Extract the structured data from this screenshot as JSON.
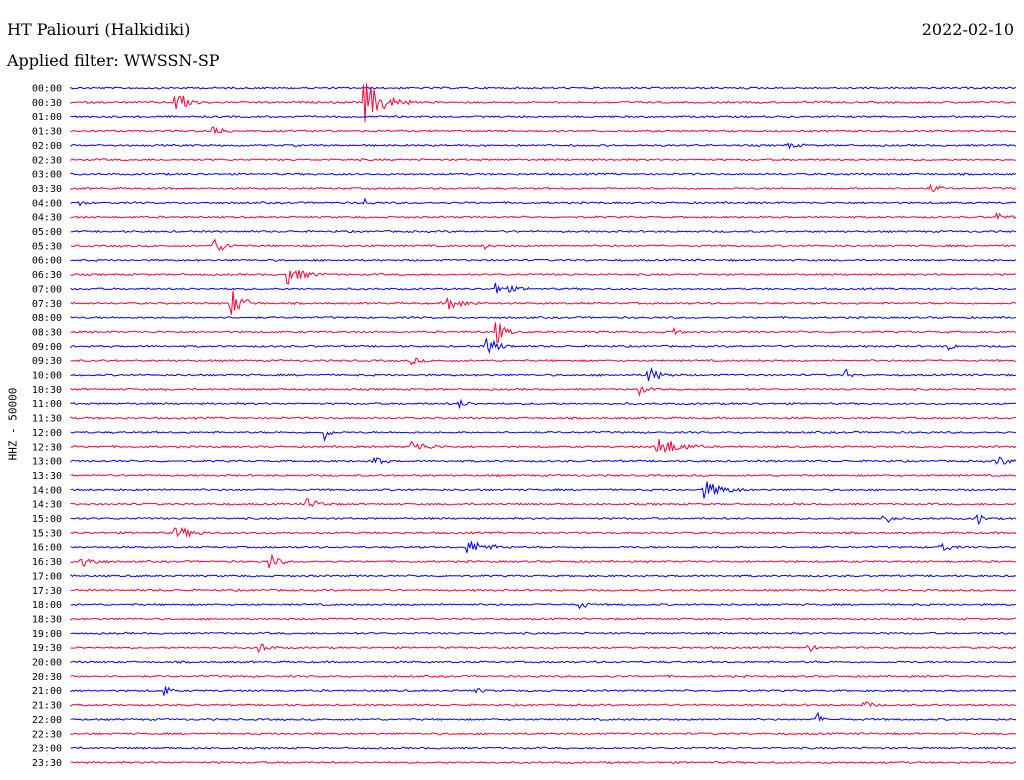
{
  "header": {
    "station": "HT Paliouri (Halkidiki)",
    "date": "2022-02-10",
    "filter": "Applied filter: WWSSN-SP"
  },
  "chart_data": {
    "type": "line",
    "title": "HT Paliouri (Halkidiki)",
    "ylabel": "HHZ - 50000",
    "colors": [
      "#0000ff",
      "#ff0033"
    ],
    "rows": [
      {
        "label": "00:00",
        "events": []
      },
      {
        "label": "00:30",
        "events": [
          {
            "t": 0.11,
            "a": 14,
            "d": 0.03
          },
          {
            "t": 0.31,
            "a": 22,
            "d": 0.05
          }
        ]
      },
      {
        "label": "01:00",
        "events": []
      },
      {
        "label": "01:30",
        "events": [
          {
            "t": 0.15,
            "a": 7,
            "d": 0.02
          }
        ]
      },
      {
        "label": "02:00",
        "events": [
          {
            "t": 0.76,
            "a": 3,
            "d": 0.02
          }
        ]
      },
      {
        "label": "02:30",
        "events": []
      },
      {
        "label": "03:00",
        "events": []
      },
      {
        "label": "03:30",
        "events": [
          {
            "t": 0.91,
            "a": 5,
            "d": 0.02
          }
        ]
      },
      {
        "label": "04:00",
        "events": [
          {
            "t": 0.01,
            "a": 4,
            "d": 0.01
          },
          {
            "t": 0.31,
            "a": 6,
            "d": 0.01
          }
        ]
      },
      {
        "label": "04:30",
        "events": [
          {
            "t": 0.98,
            "a": 4,
            "d": 0.02
          }
        ]
      },
      {
        "label": "05:00",
        "events": []
      },
      {
        "label": "05:30",
        "events": [
          {
            "t": 0.15,
            "a": 9,
            "d": 0.03
          },
          {
            "t": 0.44,
            "a": 3,
            "d": 0.01
          }
        ]
      },
      {
        "label": "06:00",
        "events": []
      },
      {
        "label": "06:30",
        "events": [
          {
            "t": 0.23,
            "a": 9,
            "d": 0.04
          }
        ]
      },
      {
        "label": "07:00",
        "events": [
          {
            "t": 0.45,
            "a": 6,
            "d": 0.04
          }
        ]
      },
      {
        "label": "07:30",
        "events": [
          {
            "t": 0.17,
            "a": 14,
            "d": 0.03
          },
          {
            "t": 0.4,
            "a": 6,
            "d": 0.04
          }
        ]
      },
      {
        "label": "08:00",
        "events": []
      },
      {
        "label": "08:30",
        "events": [
          {
            "t": 0.45,
            "a": 14,
            "d": 0.02
          },
          {
            "t": 0.64,
            "a": 5,
            "d": 0.01
          }
        ]
      },
      {
        "label": "09:00",
        "events": [
          {
            "t": 0.44,
            "a": 9,
            "d": 0.03
          },
          {
            "t": 0.93,
            "a": 5,
            "d": 0.01
          }
        ]
      },
      {
        "label": "09:30",
        "events": [
          {
            "t": 0.36,
            "a": 4,
            "d": 0.02
          }
        ]
      },
      {
        "label": "10:00",
        "events": [
          {
            "t": 0.61,
            "a": 9,
            "d": 0.03
          },
          {
            "t": 0.82,
            "a": 6,
            "d": 0.01
          }
        ]
      },
      {
        "label": "10:30",
        "events": [
          {
            "t": 0.6,
            "a": 6,
            "d": 0.02
          }
        ]
      },
      {
        "label": "11:00",
        "events": [
          {
            "t": 0.41,
            "a": 4,
            "d": 0.02
          }
        ]
      },
      {
        "label": "11:30",
        "events": []
      },
      {
        "label": "12:00",
        "events": [
          {
            "t": 0.27,
            "a": 8,
            "d": 0.01
          }
        ]
      },
      {
        "label": "12:30",
        "events": [
          {
            "t": 0.36,
            "a": 6,
            "d": 0.04
          },
          {
            "t": 0.62,
            "a": 12,
            "d": 0.05
          }
        ]
      },
      {
        "label": "13:00",
        "events": [
          {
            "t": 0.32,
            "a": 6,
            "d": 0.02
          },
          {
            "t": 0.98,
            "a": 5,
            "d": 0.03
          }
        ]
      },
      {
        "label": "13:30",
        "events": []
      },
      {
        "label": "14:00",
        "events": [
          {
            "t": 0.67,
            "a": 9,
            "d": 0.05
          }
        ]
      },
      {
        "label": "14:30",
        "events": [
          {
            "t": 0.25,
            "a": 6,
            "d": 0.03
          }
        ]
      },
      {
        "label": "15:00",
        "events": [
          {
            "t": 0.86,
            "a": 6,
            "d": 0.02
          },
          {
            "t": 0.96,
            "a": 8,
            "d": 0.01
          }
        ]
      },
      {
        "label": "15:30",
        "events": [
          {
            "t": 0.11,
            "a": 7,
            "d": 0.04
          }
        ]
      },
      {
        "label": "16:00",
        "events": [
          {
            "t": 0.42,
            "a": 7,
            "d": 0.05
          },
          {
            "t": 0.92,
            "a": 7,
            "d": 0.02
          }
        ]
      },
      {
        "label": "16:30",
        "events": [
          {
            "t": 0.01,
            "a": 8,
            "d": 0.03
          },
          {
            "t": 0.21,
            "a": 9,
            "d": 0.02
          }
        ]
      },
      {
        "label": "17:00",
        "events": []
      },
      {
        "label": "17:30",
        "events": []
      },
      {
        "label": "18:00",
        "events": [
          {
            "t": 0.54,
            "a": 7,
            "d": 0.01
          }
        ]
      },
      {
        "label": "18:30",
        "events": []
      },
      {
        "label": "19:00",
        "events": []
      },
      {
        "label": "19:30",
        "events": [
          {
            "t": 0.2,
            "a": 5,
            "d": 0.02
          },
          {
            "t": 0.78,
            "a": 9,
            "d": 0.01
          }
        ]
      },
      {
        "label": "20:00",
        "events": []
      },
      {
        "label": "20:30",
        "events": []
      },
      {
        "label": "21:00",
        "events": [
          {
            "t": 0.1,
            "a": 6,
            "d": 0.01
          },
          {
            "t": 0.43,
            "a": 3,
            "d": 0.01
          }
        ]
      },
      {
        "label": "21:30",
        "events": [
          {
            "t": 0.84,
            "a": 4,
            "d": 0.02
          }
        ]
      },
      {
        "label": "22:00",
        "events": [
          {
            "t": 0.79,
            "a": 7,
            "d": 0.01
          }
        ]
      },
      {
        "label": "22:30",
        "events": []
      },
      {
        "label": "23:00",
        "events": []
      },
      {
        "label": "23:30",
        "events": []
      }
    ]
  }
}
